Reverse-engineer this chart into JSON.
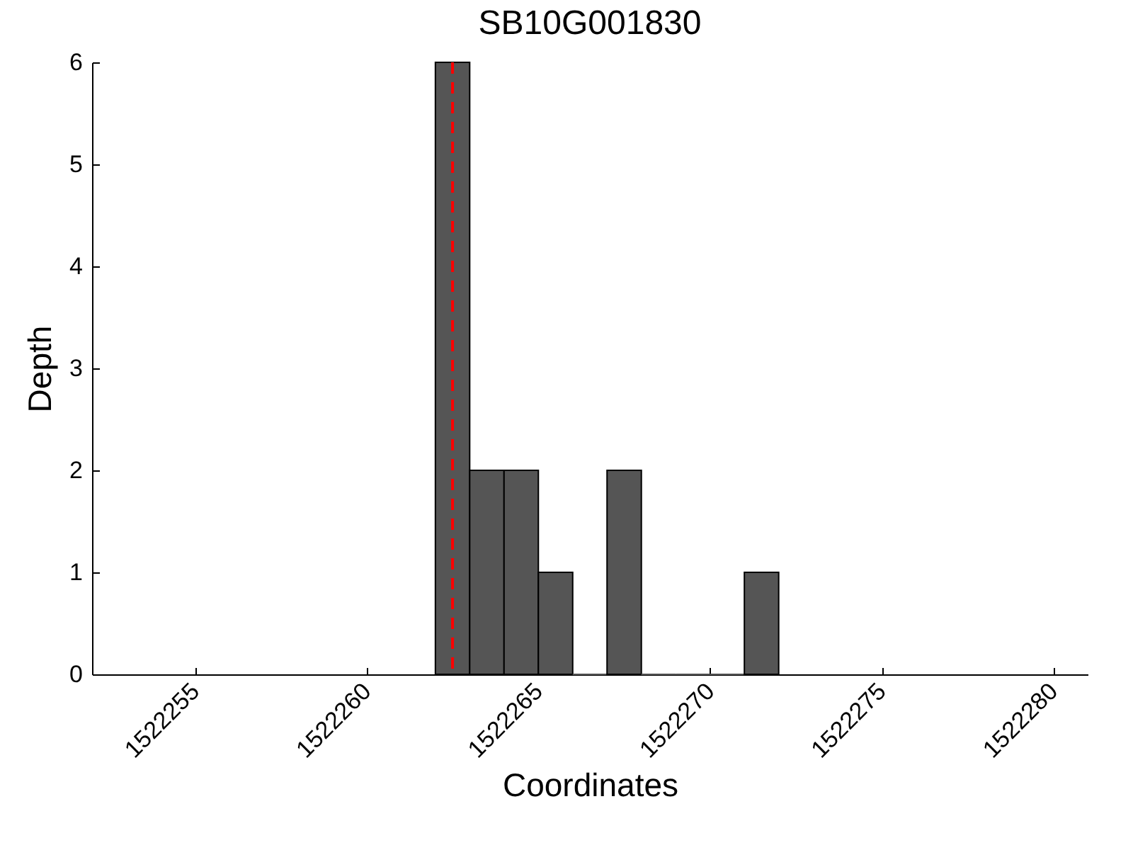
{
  "chart_data": {
    "type": "histogram",
    "title": "SB10G001830",
    "xlabel": "Coordinates",
    "ylabel": "Depth",
    "bins": [
      1522262,
      1522263,
      1522264,
      1522265,
      1522266,
      1522267,
      1522268,
      1522269,
      1522270,
      1522271,
      1522272
    ],
    "values": [
      6,
      2,
      2,
      1,
      0,
      2,
      0,
      0,
      0,
      1
    ],
    "color": "#555555",
    "xlim": [
      1522252,
      1522281
    ],
    "xticks": [
      1522255,
      1522260,
      1522265,
      1522270,
      1522275,
      1522280
    ],
    "ylim": [
      0,
      6
    ],
    "yticks": [
      0,
      1,
      2,
      3,
      4,
      5,
      6
    ],
    "grid": false,
    "legend": false,
    "ref_lines": [
      {
        "axis": "x",
        "value": 1522262.5,
        "color": "#ff0000",
        "line_style": "dashed"
      }
    ]
  }
}
